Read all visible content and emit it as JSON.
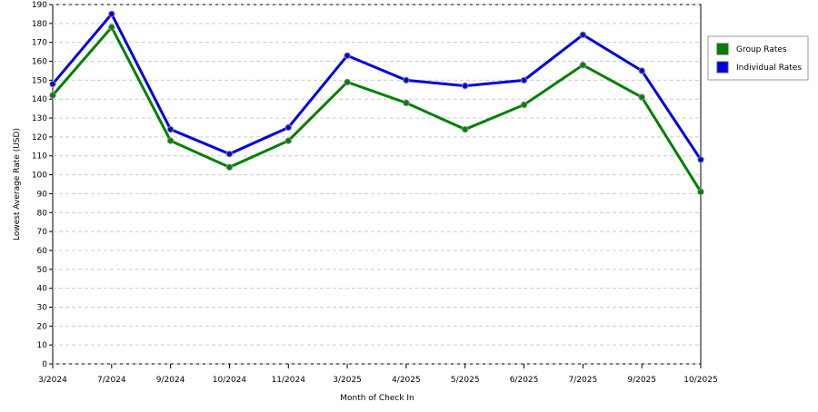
{
  "chart_data": {
    "type": "line",
    "x_label": "Month of Check In",
    "y_label": "Lowest Average Rate (USD)",
    "categories": [
      "3/2024",
      "7/2024",
      "9/2024",
      "10/2024",
      "11/2024",
      "3/2025",
      "4/2025",
      "5/2025",
      "6/2025",
      "7/2025",
      "9/2025",
      "10/2025"
    ],
    "series": [
      {
        "name": "Group Rates",
        "color": "#008000",
        "values": [
          142,
          178,
          118,
          104,
          118,
          149,
          138,
          124,
          137,
          158,
          141,
          91
        ]
      },
      {
        "name": "Individual Rates",
        "color": "#0000e0",
        "values": [
          148,
          185,
          124,
          111,
          125,
          163,
          150,
          147,
          150,
          174,
          155,
          108
        ]
      }
    ],
    "ylim": [
      0,
      190
    ],
    "yticks": [
      0,
      10,
      20,
      30,
      40,
      50,
      60,
      70,
      80,
      90,
      100,
      110,
      120,
      130,
      140,
      150,
      160,
      170,
      180,
      190
    ],
    "grid": true,
    "legend": "right"
  }
}
